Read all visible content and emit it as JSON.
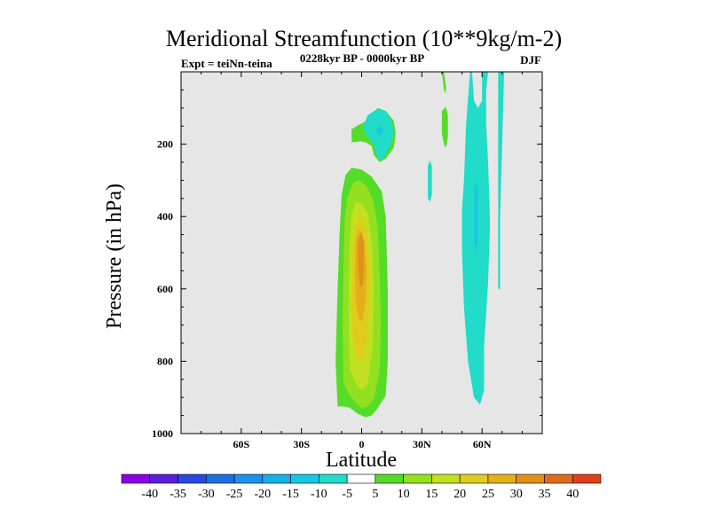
{
  "chart_data": {
    "type": "filled-contour",
    "title": "Meridional Streamfunction (10**9kg/m-2)",
    "subtitle_left": "Expt = teiNn-teina",
    "subtitle_center": "0228kyr BP - 0000kyr BP",
    "subtitle_right": "DJF",
    "xlabel": "Latitude",
    "ylabel": "Pressure (in hPa)",
    "xlim": [
      -90,
      90
    ],
    "ylim": [
      0,
      1000
    ],
    "y_inverted": true,
    "background_color": "#e6e6e6",
    "x_ticks": [
      {
        "value": -60,
        "label": "60S"
      },
      {
        "value": -30,
        "label": "30S"
      },
      {
        "value": 0,
        "label": "0"
      },
      {
        "value": 30,
        "label": "30N"
      },
      {
        "value": 60,
        "label": "60N"
      }
    ],
    "y_ticks": [
      {
        "value": 200,
        "label": "200"
      },
      {
        "value": 400,
        "label": "400"
      },
      {
        "value": 600,
        "label": "600"
      },
      {
        "value": 800,
        "label": "800"
      },
      {
        "value": 1000,
        "label": "1000"
      }
    ],
    "colorbar": {
      "levels": [
        -40,
        -35,
        -30,
        -25,
        -20,
        -15,
        -10,
        -5,
        5,
        10,
        15,
        20,
        25,
        30,
        35,
        40
      ],
      "colors": [
        "#8c00e6",
        "#5a1fd6",
        "#2a48e0",
        "#1f6fe0",
        "#1e90ee",
        "#16b0e6",
        "#18c8e0",
        "#20dcc8",
        "#ffffff",
        "#55dc28",
        "#92e020",
        "#c2e020",
        "#e0cc1e",
        "#e4b01a",
        "#e0901c",
        "#de6c1c",
        "#e0401a"
      ]
    },
    "regions": [
      {
        "name": "positive-cell-level1",
        "level": "5 to 10",
        "points": [
          [
            -12,
            925
          ],
          [
            -13,
            800
          ],
          [
            -12,
            600
          ],
          [
            -11,
            450
          ],
          [
            -10,
            340
          ],
          [
            -8,
            285
          ],
          [
            -5,
            265
          ],
          [
            0,
            270
          ],
          [
            5,
            290
          ],
          [
            10,
            330
          ],
          [
            12,
            400
          ],
          [
            13,
            600
          ],
          [
            13,
            800
          ],
          [
            12,
            895
          ],
          [
            8,
            930
          ],
          [
            5,
            950
          ],
          [
            2,
            955
          ],
          [
            -2,
            945
          ],
          [
            -6,
            928
          ],
          [
            -9,
            925
          ]
        ]
      },
      {
        "name": "positive-cell-level2",
        "level": "10 to 15",
        "points": [
          [
            -9,
            860
          ],
          [
            -9.5,
            700
          ],
          [
            -9,
            520
          ],
          [
            -8.5,
            410
          ],
          [
            -7,
            345
          ],
          [
            -4,
            305
          ],
          [
            -1,
            300
          ],
          [
            3,
            320
          ],
          [
            6,
            360
          ],
          [
            8,
            430
          ],
          [
            9,
            560
          ],
          [
            9.5,
            700
          ],
          [
            9,
            830
          ],
          [
            6,
            905
          ],
          [
            3,
            925
          ],
          [
            0,
            930
          ],
          [
            -3,
            915
          ],
          [
            -6,
            895
          ]
        ]
      },
      {
        "name": "positive-cell-level3",
        "level": "15 to 20",
        "points": [
          [
            -6,
            820
          ],
          [
            -6.5,
            650
          ],
          [
            -6,
            490
          ],
          [
            -5,
            395
          ],
          [
            -3,
            360
          ],
          [
            0,
            365
          ],
          [
            3,
            390
          ],
          [
            5,
            470
          ],
          [
            6,
            600
          ],
          [
            5.5,
            760
          ],
          [
            3,
            865
          ],
          [
            0,
            880
          ],
          [
            -3,
            860
          ]
        ]
      },
      {
        "name": "positive-cell-level4",
        "level": "20 to 25",
        "points": [
          [
            -4.5,
            725
          ],
          [
            -5,
            600
          ],
          [
            -4.5,
            480
          ],
          [
            -3,
            420
          ],
          [
            -1,
            400
          ],
          [
            1,
            410
          ],
          [
            3,
            460
          ],
          [
            4,
            560
          ],
          [
            3.5,
            700
          ],
          [
            1.5,
            790
          ],
          [
            -1,
            800
          ],
          [
            -3,
            775
          ]
        ]
      },
      {
        "name": "positive-cell-level5",
        "level": "25 to 30",
        "points": [
          [
            -3,
            640
          ],
          [
            -3.5,
            540
          ],
          [
            -3,
            470
          ],
          [
            -2,
            440
          ],
          [
            0,
            440
          ],
          [
            1.5,
            470
          ],
          [
            2.5,
            540
          ],
          [
            2,
            630
          ],
          [
            0.5,
            690
          ],
          [
            -1.5,
            685
          ]
        ]
      },
      {
        "name": "positive-cell-level6",
        "level": "30 to 35",
        "points": [
          [
            -1.6,
            560
          ],
          [
            -2,
            500
          ],
          [
            -1.5,
            460
          ],
          [
            0,
            445
          ],
          [
            1,
            470
          ],
          [
            1.2,
            530
          ],
          [
            0.5,
            590
          ],
          [
            -0.8,
            595
          ]
        ]
      },
      {
        "name": "positive-upper-blob",
        "level": "5 to 10",
        "points": [
          [
            -5,
            160
          ],
          [
            -2,
            148
          ],
          [
            1,
            140
          ],
          [
            4,
            128
          ],
          [
            8,
            100
          ],
          [
            12,
            108
          ],
          [
            16,
            135
          ],
          [
            17,
            170
          ],
          [
            16,
            210
          ],
          [
            12,
            240
          ],
          [
            9,
            250
          ],
          [
            6,
            230
          ],
          [
            5,
            205
          ],
          [
            2,
            195
          ],
          [
            -1,
            192
          ],
          [
            -4,
            195
          ],
          [
            -5,
            180
          ]
        ]
      },
      {
        "name": "positive-upper-left-patch",
        "level": "5 to 10",
        "points": [
          [
            -5,
            158
          ],
          [
            -1,
            150
          ],
          [
            -1,
            192
          ],
          [
            -5,
            194
          ]
        ]
      },
      {
        "name": "negative-upper-blob",
        "level": "-10 to -5",
        "points": [
          [
            3,
            120
          ],
          [
            8,
            102
          ],
          [
            12,
            108
          ],
          [
            15,
            135
          ],
          [
            16,
            170
          ],
          [
            14,
            205
          ],
          [
            11,
            238
          ],
          [
            9,
            245
          ],
          [
            7,
            225
          ],
          [
            6,
            200
          ],
          [
            3,
            180
          ],
          [
            1,
            160
          ],
          [
            1,
            145
          ]
        ]
      },
      {
        "name": "negative-upper-core",
        "level": "-15 to -10",
        "points": [
          [
            7,
            160
          ],
          [
            9,
            150
          ],
          [
            11,
            160
          ],
          [
            10,
            175
          ],
          [
            8,
            175
          ]
        ]
      },
      {
        "name": "positive-north-column",
        "level": "5 to 10",
        "points": [
          [
            40,
            0
          ],
          [
            41,
            0
          ],
          [
            42,
            40
          ],
          [
            42,
            60
          ],
          [
            41,
            50
          ]
        ]
      },
      {
        "name": "positive-north-patch",
        "level": "5 to 10",
        "points": [
          [
            40,
            108
          ],
          [
            42,
            96
          ],
          [
            43,
            120
          ],
          [
            43,
            180
          ],
          [
            42,
            210
          ],
          [
            41,
            200
          ],
          [
            40,
            170
          ]
        ]
      },
      {
        "name": "negative-mid-strip",
        "level": "-10 to -5",
        "points": [
          [
            33,
            260
          ],
          [
            34,
            245
          ],
          [
            35,
            260
          ],
          [
            35,
            340
          ],
          [
            34,
            360
          ],
          [
            33,
            350
          ],
          [
            33,
            300
          ]
        ]
      },
      {
        "name": "negative-north-cell",
        "level": "-10 to -5",
        "points": [
          [
            54,
            0
          ],
          [
            52,
            150
          ],
          [
            51,
            300
          ],
          [
            50,
            380
          ],
          [
            50,
            500
          ],
          [
            51,
            650
          ],
          [
            53,
            800
          ],
          [
            56,
            900
          ],
          [
            59,
            920
          ],
          [
            61,
            880
          ],
          [
            61,
            760
          ],
          [
            63,
            580
          ],
          [
            64,
            420
          ],
          [
            63,
            250
          ],
          [
            62,
            140
          ],
          [
            62,
            50
          ],
          [
            63,
            0
          ],
          [
            60,
            0
          ],
          [
            60,
            80
          ],
          [
            58,
            100
          ],
          [
            56,
            80
          ],
          [
            55,
            0
          ]
        ]
      },
      {
        "name": "negative-north-core",
        "level": "-15 to -10",
        "points": [
          [
            56,
            340
          ],
          [
            57,
            300
          ],
          [
            58,
            330
          ],
          [
            58,
            460
          ],
          [
            57,
            500
          ],
          [
            56,
            460
          ]
        ]
      },
      {
        "name": "negative-north-right-column",
        "level": "-10 to -5",
        "points": [
          [
            68,
            0
          ],
          [
            71,
            0
          ],
          [
            70,
            200
          ],
          [
            69,
            400
          ],
          [
            69,
            600
          ],
          [
            68,
            600
          ],
          [
            68,
            400
          ],
          [
            68,
            200
          ]
        ]
      }
    ]
  }
}
